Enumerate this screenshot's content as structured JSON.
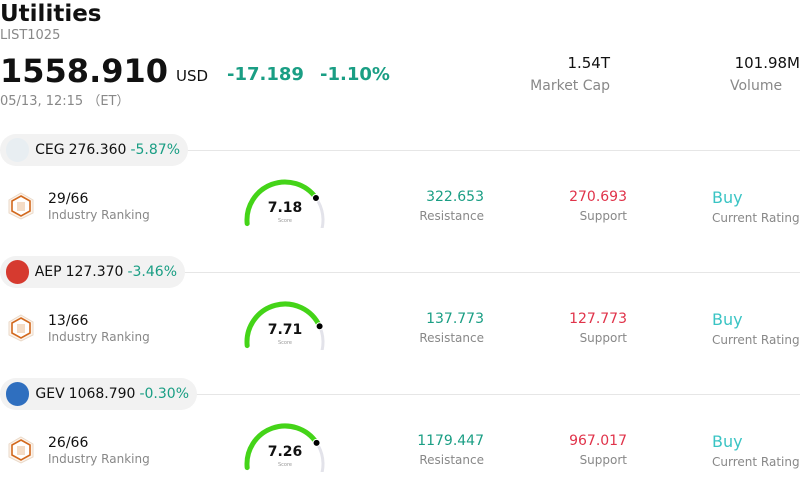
{
  "header": {
    "title": "Utilities",
    "code": "LIST1025",
    "price": "1558.910",
    "currency": "USD",
    "change": "-17.189",
    "change_pct": "-1.10%",
    "timestamp": "05/13, 12:15 （ET）"
  },
  "stats": [
    {
      "value": "1.54T",
      "label": "Market Cap"
    },
    {
      "value": "101.98M",
      "label": "Volume"
    }
  ],
  "stocks": [
    {
      "ticker": "CEG",
      "price": "276.360",
      "pct": "-5.87%",
      "logo_color": "#e8eef2",
      "rank": "29/66",
      "rank_label": "Industry Ranking",
      "score": 7.18,
      "score_text": "7.18",
      "score_label": "Score",
      "resistance": "322.653",
      "resistance_label": "Resistance",
      "support": "270.693",
      "support_label": "Support",
      "rating": "Buy",
      "rating_label": "Current Rating"
    },
    {
      "ticker": "AEP",
      "price": "127.370",
      "pct": "-3.46%",
      "logo_color": "#d63a2f",
      "rank": "13/66",
      "rank_label": "Industry Ranking",
      "score": 7.71,
      "score_text": "7.71",
      "score_label": "Score",
      "resistance": "137.773",
      "resistance_label": "Resistance",
      "support": "127.773",
      "support_label": "Support",
      "rating": "Buy",
      "rating_label": "Current Rating"
    },
    {
      "ticker": "GEV",
      "price": "1068.790",
      "pct": "-0.30%",
      "logo_color": "#2f6fbf",
      "rank": "26/66",
      "rank_label": "Industry Ranking",
      "score": 7.26,
      "score_text": "7.26",
      "score_label": "Score",
      "resistance": "1179.447",
      "resistance_label": "Resistance",
      "support": "967.017",
      "support_label": "Support",
      "rating": "Buy",
      "rating_label": "Current Rating"
    }
  ],
  "colors": {
    "positive_teal": "#1a9e84",
    "support_red": "#e0334a",
    "rating_cyan": "#3ac4c4",
    "gauge_green": "#44d418",
    "gauge_track": "#e3e3ea"
  }
}
